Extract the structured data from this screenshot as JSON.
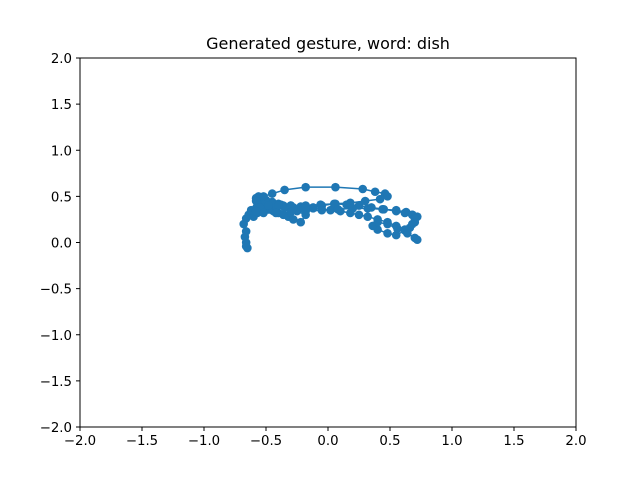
{
  "chart_data": {
    "type": "line",
    "title": "Generated gesture, word: dish",
    "xlabel": "",
    "ylabel": "",
    "xlim": [
      -2.0,
      2.0
    ],
    "ylim": [
      -2.0,
      2.0
    ],
    "x_ticks": [
      "−2.0",
      "−1.5",
      "−1.0",
      "−0.5",
      "0.0",
      "0.5",
      "1.0",
      "1.5",
      "2.0"
    ],
    "y_ticks": [
      "−2.0",
      "−1.5",
      "−1.0",
      "−0.5",
      "0.0",
      "0.5",
      "1.0",
      "1.5",
      "2.0"
    ],
    "grid": false,
    "color": "#1f77b4",
    "markers": true,
    "series": [
      {
        "x": [
          -0.65,
          -0.66,
          -0.66,
          -0.67,
          -0.66,
          -0.68,
          -0.66,
          -0.64,
          -0.62,
          -0.58,
          -0.55,
          -0.52,
          -0.48,
          -0.44,
          -0.4,
          -0.36,
          -0.32,
          -0.28,
          -0.22,
          -0.18,
          -0.25,
          -0.3,
          -0.36,
          -0.4,
          -0.45,
          -0.5,
          -0.53,
          -0.56,
          -0.58,
          -0.55,
          -0.5,
          -0.45,
          -0.38,
          -0.3,
          -0.22,
          -0.12,
          -0.05,
          0.05,
          0.15,
          0.25,
          0.35,
          0.45,
          0.55,
          0.62,
          0.68,
          0.72,
          0.7,
          0.66,
          0.62,
          0.55,
          0.48,
          0.4,
          0.32,
          0.25,
          0.18,
          0.1,
          0.02,
          -0.05,
          -0.12,
          -0.2,
          -0.28,
          -0.35,
          -0.42,
          -0.48,
          -0.53,
          -0.57,
          -0.6,
          -0.62,
          -0.58,
          -0.52,
          -0.45,
          -0.35,
          -0.18,
          0.06,
          0.28,
          0.38,
          0.46,
          0.48,
          0.42,
          0.3,
          0.18,
          0.06,
          -0.06,
          -0.18,
          -0.3,
          -0.4,
          -0.48,
          -0.55,
          -0.58,
          -0.52,
          -0.42,
          -0.3,
          -0.18,
          -0.05,
          0.08,
          0.2,
          0.32,
          0.44,
          0.55,
          0.63,
          0.68,
          0.7,
          0.68,
          0.62,
          0.55,
          0.48,
          0.4,
          0.36,
          0.4,
          0.48,
          0.56,
          0.64,
          0.7,
          0.72
        ],
        "y": [
          -0.06,
          -0.04,
          0.0,
          0.06,
          0.12,
          0.2,
          0.26,
          0.3,
          0.34,
          0.37,
          0.38,
          0.38,
          0.36,
          0.34,
          0.32,
          0.3,
          0.28,
          0.25,
          0.22,
          0.3,
          0.34,
          0.38,
          0.4,
          0.42,
          0.44,
          0.46,
          0.48,
          0.5,
          0.48,
          0.45,
          0.44,
          0.42,
          0.41,
          0.4,
          0.39,
          0.38,
          0.4,
          0.42,
          0.41,
          0.4,
          0.38,
          0.36,
          0.34,
          0.32,
          0.3,
          0.28,
          0.22,
          0.16,
          0.14,
          0.18,
          0.22,
          0.25,
          0.28,
          0.3,
          0.32,
          0.34,
          0.35,
          0.36,
          0.37,
          0.37,
          0.38,
          0.38,
          0.38,
          0.37,
          0.35,
          0.32,
          0.28,
          0.35,
          0.45,
          0.5,
          0.53,
          0.57,
          0.6,
          0.6,
          0.58,
          0.55,
          0.53,
          0.5,
          0.47,
          0.45,
          0.43,
          0.42,
          0.41,
          0.4,
          0.4,
          0.4,
          0.4,
          0.38,
          0.34,
          0.32,
          0.32,
          0.33,
          0.34,
          0.35,
          0.36,
          0.37,
          0.37,
          0.36,
          0.35,
          0.33,
          0.3,
          0.26,
          0.2,
          0.13,
          0.08,
          0.1,
          0.14,
          0.18,
          0.22,
          0.2,
          0.15,
          0.1,
          0.05,
          0.03
        ]
      }
    ]
  }
}
